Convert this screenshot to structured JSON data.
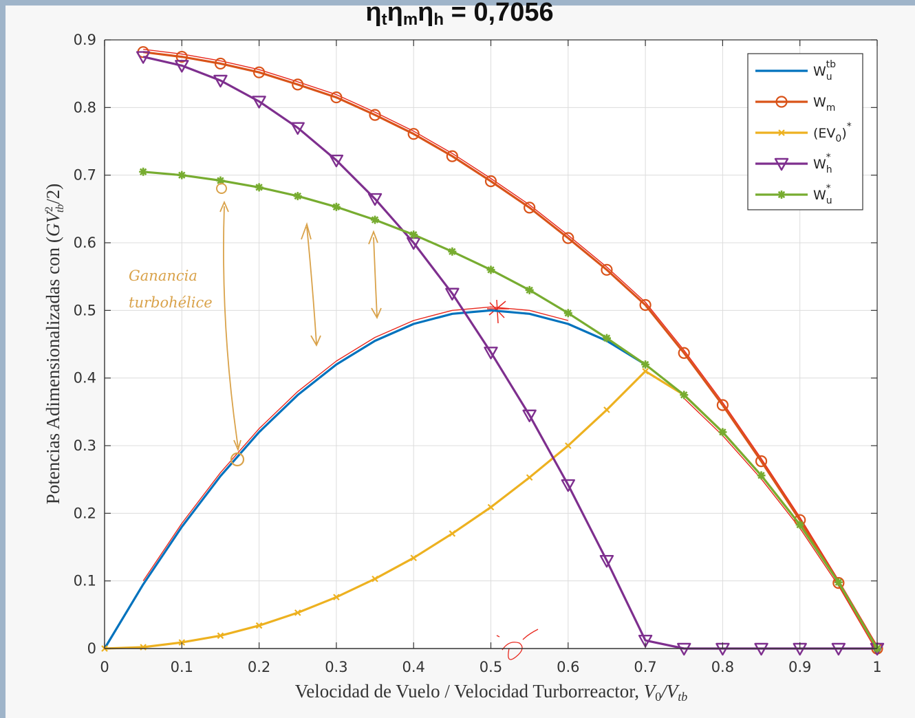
{
  "chart_data": {
    "type": "line",
    "title": "η_tη_mη_h = 0,7056",
    "title_parts": {
      "eta": "η",
      "sub_t": "t",
      "sub_m": "m",
      "sub_h": "h",
      "value": " = 0,7056"
    },
    "xlabel": "Velocidad de Vuelo / Velocidad Turborreactor, V0/Vtb",
    "xlabel_parts": {
      "text": "Velocidad de Vuelo / Velocidad Turborreactor, ",
      "V": "V",
      "sub0": "0",
      "slash": "/V",
      "subtb": "tb"
    },
    "ylabel": "Potencias Adimensionalizadas con (GV_tb^2/2)",
    "ylabel_parts": {
      "text": "Potencias Adimensionalizadas con (",
      "G": "GV",
      "sup": "2",
      "sub": "tb",
      "tail": "/2)"
    },
    "xlim": [
      0,
      1
    ],
    "ylim": [
      0,
      0.9
    ],
    "xticks": [
      "0",
      "0.1",
      "0.2",
      "0.3",
      "0.4",
      "0.5",
      "0.6",
      "0.7",
      "0.8",
      "0.9",
      "1"
    ],
    "yticks": [
      "0",
      "0.1",
      "0.2",
      "0.3",
      "0.4",
      "0.5",
      "0.6",
      "0.7",
      "0.8",
      "0.9"
    ],
    "grid": true,
    "legend_position": "top-right",
    "series": [
      {
        "name": "W_u^tb",
        "label_main": "W",
        "label_sub": "u",
        "label_sup": "tb",
        "color": "#0072bd",
        "marker": "none",
        "x": [
          0,
          0.05,
          0.1,
          0.15,
          0.2,
          0.25,
          0.3,
          0.35,
          0.4,
          0.45,
          0.5,
          0.55,
          0.6,
          0.65,
          0.7
        ],
        "y": [
          0,
          0.095,
          0.18,
          0.255,
          0.32,
          0.375,
          0.42,
          0.455,
          0.48,
          0.495,
          0.5,
          0.495,
          0.48,
          0.455,
          0.42
        ]
      },
      {
        "name": "W_m",
        "label_main": "W",
        "label_sub": "m",
        "label_sup": "",
        "color": "#d95319",
        "marker": "circle",
        "x": [
          0.05,
          0.1,
          0.15,
          0.2,
          0.25,
          0.3,
          0.35,
          0.4,
          0.45,
          0.5,
          0.55,
          0.6,
          0.65,
          0.7,
          0.75,
          0.8,
          0.85,
          0.9,
          0.95,
          1.0
        ],
        "y": [
          0.882,
          0.875,
          0.865,
          0.852,
          0.834,
          0.815,
          0.789,
          0.761,
          0.728,
          0.691,
          0.652,
          0.607,
          0.56,
          0.508,
          0.437,
          0.36,
          0.277,
          0.19,
          0.097,
          0
        ]
      },
      {
        "name": "(EV_0)^*",
        "label_main": "(EV",
        "label_sub": "0",
        "label_tail": ")",
        "label_sup": "*",
        "color": "#edb120",
        "marker": "x",
        "x": [
          0,
          0.05,
          0.1,
          0.15,
          0.2,
          0.25,
          0.3,
          0.35,
          0.4,
          0.45,
          0.5,
          0.55,
          0.6,
          0.65,
          0.7,
          0.75,
          0.8,
          0.85,
          0.9,
          0.95,
          1.0
        ],
        "y": [
          0,
          0.002,
          0.009,
          0.019,
          0.034,
          0.053,
          0.076,
          0.103,
          0.134,
          0.17,
          0.209,
          0.253,
          0.3,
          0.353,
          0.41,
          0.375,
          0.32,
          0.256,
          0.183,
          0.098,
          0
        ]
      },
      {
        "name": "W_h^*",
        "label_main": "W",
        "label_sub": "h",
        "label_sup": "*",
        "color": "#7e2f8e",
        "marker": "triangle-down",
        "x": [
          0.05,
          0.1,
          0.15,
          0.2,
          0.25,
          0.3,
          0.35,
          0.4,
          0.45,
          0.5,
          0.55,
          0.6,
          0.65,
          0.7,
          0.75,
          0.8,
          0.85,
          0.9,
          0.95,
          1.0
        ],
        "y": [
          0.875,
          0.862,
          0.84,
          0.809,
          0.77,
          0.722,
          0.665,
          0.6,
          0.525,
          0.438,
          0.345,
          0.242,
          0.13,
          0.012,
          0,
          0,
          0,
          0,
          0,
          0
        ]
      },
      {
        "name": "W_u^*",
        "label_main": "W",
        "label_sub": "u",
        "label_sup": "*",
        "color": "#77ac30",
        "marker": "asterisk",
        "x": [
          0.05,
          0.1,
          0.15,
          0.2,
          0.25,
          0.3,
          0.35,
          0.4,
          0.45,
          0.5,
          0.55,
          0.6,
          0.65,
          0.7,
          0.75,
          0.8,
          0.85,
          0.9,
          0.95,
          1.0
        ],
        "y": [
          0.705,
          0.7,
          0.692,
          0.682,
          0.669,
          0.653,
          0.634,
          0.612,
          0.587,
          0.56,
          0.53,
          0.496,
          0.459,
          0.42,
          0.375,
          0.32,
          0.256,
          0.183,
          0.098,
          0
        ]
      }
    ],
    "annotation_text": "Ganancia turbohélice",
    "annotation_lines": [
      "Ganancia",
      "turbohélice"
    ],
    "annotation_color": "#d9a24a",
    "ink_color": "#e8261c"
  }
}
